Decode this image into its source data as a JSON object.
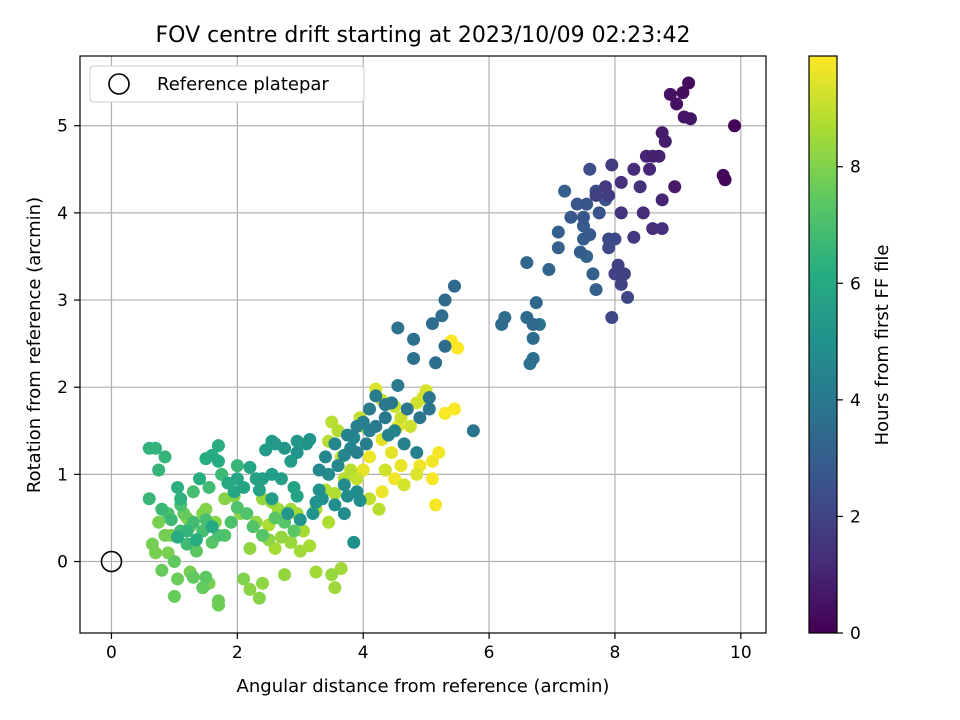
{
  "chart_data": {
    "type": "scatter",
    "title": "FOV centre drift starting at 2023/10/09 02:23:42",
    "xlabel": "Angular distance from reference (arcmin)",
    "ylabel": "Rotation from reference (arcmin)",
    "xlim": [
      -0.5,
      10.4
    ],
    "ylim": [
      -0.82,
      5.8
    ],
    "xticks": [
      0,
      2,
      4,
      6,
      8,
      10
    ],
    "yticks": [
      0,
      1,
      2,
      3,
      4,
      5
    ],
    "grid": true,
    "legend": {
      "position": "top-left",
      "entries": [
        {
          "label": "Reference platepar",
          "marker": "open-circle"
        }
      ]
    },
    "reference_point": {
      "x": 0,
      "y": 0
    },
    "colorbar": {
      "label": "Hours from first FF file",
      "min": 0,
      "max": 9.9,
      "ticks": [
        0,
        2,
        4,
        6,
        8
      ],
      "colormap": "viridis"
    },
    "points": [
      [
        9.9,
        5.0,
        0.05
      ],
      [
        9.72,
        4.43,
        0.15
      ],
      [
        9.75,
        4.38,
        0.2
      ],
      [
        9.17,
        5.49,
        0.3
      ],
      [
        9.08,
        5.38,
        0.35
      ],
      [
        8.88,
        5.36,
        0.45
      ],
      [
        8.98,
        5.25,
        0.5
      ],
      [
        9.1,
        5.1,
        0.55
      ],
      [
        9.2,
        5.08,
        0.6
      ],
      [
        8.95,
        4.3,
        0.7
      ],
      [
        8.75,
        4.92,
        0.75
      ],
      [
        8.8,
        4.82,
        0.8
      ],
      [
        8.6,
        4.65,
        0.9
      ],
      [
        8.7,
        4.65,
        0.95
      ],
      [
        8.5,
        4.65,
        1.0
      ],
      [
        8.75,
        4.15,
        1.05
      ],
      [
        8.55,
        4.5,
        1.1
      ],
      [
        8.45,
        4.0,
        1.2
      ],
      [
        8.3,
        4.5,
        1.25
      ],
      [
        8.6,
        3.82,
        1.3
      ],
      [
        8.75,
        3.82,
        1.35
      ],
      [
        8.1,
        4.35,
        1.4
      ],
      [
        8.4,
        4.3,
        1.45
      ],
      [
        8.1,
        4.0,
        1.5
      ],
      [
        8.3,
        3.72,
        1.6
      ],
      [
        7.85,
        4.3,
        1.7
      ],
      [
        7.95,
        4.55,
        1.75
      ],
      [
        7.9,
        4.2,
        1.8
      ],
      [
        7.7,
        4.2,
        1.85
      ],
      [
        8.15,
        3.3,
        1.9
      ],
      [
        8.05,
        3.4,
        1.95
      ],
      [
        8.0,
        3.3,
        2.0
      ],
      [
        8.1,
        3.18,
        2.05
      ],
      [
        8.2,
        3.03,
        2.1
      ],
      [
        7.95,
        2.8,
        2.15
      ],
      [
        7.9,
        3.6,
        2.2
      ],
      [
        8.0,
        3.7,
        2.25
      ],
      [
        7.9,
        3.7,
        2.3
      ],
      [
        7.6,
        4.5,
        2.4
      ],
      [
        7.7,
        4.25,
        2.45
      ],
      [
        7.85,
        4.15,
        2.5
      ],
      [
        7.75,
        4.0,
        2.55
      ],
      [
        7.55,
        4.1,
        2.6
      ],
      [
        7.5,
        3.95,
        2.65
      ],
      [
        7.4,
        4.1,
        2.7
      ],
      [
        7.3,
        3.95,
        2.75
      ],
      [
        7.5,
        3.85,
        2.8
      ],
      [
        7.6,
        3.75,
        2.85
      ],
      [
        7.5,
        3.7,
        2.9
      ],
      [
        7.45,
        3.55,
        2.95
      ],
      [
        7.65,
        3.3,
        3.0
      ],
      [
        7.7,
        3.12,
        3.05
      ],
      [
        7.2,
        4.25,
        3.05
      ],
      [
        7.1,
        3.78,
        3.1
      ],
      [
        7.1,
        3.6,
        3.15
      ],
      [
        7.55,
        3.5,
        3.2
      ],
      [
        6.95,
        3.35,
        3.25
      ],
      [
        6.6,
        3.43,
        3.3
      ],
      [
        6.75,
        2.97,
        3.35
      ],
      [
        6.7,
        2.72,
        3.4
      ],
      [
        6.6,
        2.8,
        3.45
      ],
      [
        6.25,
        2.8,
        3.5
      ],
      [
        6.2,
        2.72,
        3.55
      ],
      [
        6.7,
        2.56,
        3.6
      ],
      [
        6.7,
        2.33,
        3.65
      ],
      [
        6.65,
        2.27,
        3.7
      ],
      [
        6.8,
        2.72,
        3.75
      ],
      [
        5.45,
        3.16,
        3.4
      ],
      [
        5.3,
        3.0,
        3.45
      ],
      [
        5.25,
        2.82,
        3.5
      ],
      [
        5.1,
        2.73,
        3.55
      ],
      [
        5.3,
        2.47,
        3.6
      ],
      [
        5.15,
        2.28,
        3.65
      ],
      [
        4.8,
        2.55,
        3.7
      ],
      [
        4.8,
        2.33,
        3.75
      ],
      [
        4.55,
        2.68,
        3.8
      ],
      [
        5.75,
        1.5,
        3.85
      ],
      [
        5.05,
        1.88,
        3.9
      ],
      [
        4.55,
        2.02,
        3.95
      ],
      [
        4.35,
        1.8,
        4.0
      ],
      [
        4.1,
        1.75,
        4.1
      ],
      [
        4.2,
        1.9,
        4.15
      ],
      [
        4.0,
        1.6,
        4.2
      ],
      [
        4.1,
        1.5,
        4.3
      ],
      [
        3.9,
        1.55,
        4.35
      ],
      [
        4.4,
        1.45,
        4.4
      ],
      [
        4.5,
        1.5,
        4.45
      ],
      [
        3.8,
        1.3,
        4.5
      ],
      [
        3.7,
        1.22,
        4.55
      ],
      [
        3.85,
        1.42,
        4.6
      ],
      [
        3.6,
        1.1,
        4.65
      ],
      [
        3.45,
        1.0,
        4.7
      ],
      [
        3.7,
        0.88,
        4.75
      ],
      [
        3.75,
        0.75,
        4.8
      ],
      [
        3.9,
        0.8,
        4.85
      ],
      [
        3.95,
        0.7,
        4.9
      ],
      [
        3.85,
        0.22,
        4.95
      ],
      [
        3.3,
        0.82,
        5.0
      ],
      [
        3.25,
        0.68,
        5.05
      ],
      [
        2.95,
        1.25,
        5.1
      ],
      [
        3.1,
        1.35,
        5.15
      ],
      [
        3.15,
        1.4,
        5.2
      ],
      [
        2.95,
        1.38,
        5.25
      ],
      [
        2.75,
        1.3,
        5.3
      ],
      [
        2.6,
        1.35,
        5.35
      ],
      [
        2.55,
        1.38,
        5.4
      ],
      [
        2.45,
        1.28,
        5.45
      ],
      [
        2.85,
        1.15,
        5.5
      ],
      [
        2.7,
        0.95,
        5.55
      ],
      [
        2.55,
        1.0,
        5.6
      ],
      [
        2.4,
        0.95,
        5.65
      ],
      [
        2.35,
        0.82,
        5.7
      ],
      [
        2.9,
        0.85,
        5.75
      ],
      [
        2.95,
        0.75,
        5.8
      ],
      [
        2.2,
        1.08,
        5.85
      ],
      [
        2.0,
        0.95,
        5.9
      ],
      [
        1.95,
        0.8,
        5.95
      ],
      [
        1.85,
        0.9,
        6.0
      ],
      [
        1.7,
        1.15,
        6.05
      ],
      [
        1.6,
        1.22,
        6.1
      ],
      [
        1.5,
        1.18,
        6.15
      ],
      [
        1.4,
        0.95,
        6.2
      ],
      [
        1.7,
        1.33,
        6.25
      ],
      [
        1.05,
        0.85,
        6.3
      ],
      [
        1.1,
        0.72,
        6.35
      ],
      [
        0.6,
        1.3,
        6.4
      ],
      [
        0.7,
        1.3,
        6.45
      ],
      [
        0.85,
        1.2,
        6.5
      ],
      [
        0.75,
        1.05,
        6.55
      ],
      [
        0.6,
        0.72,
        6.6
      ],
      [
        0.8,
        0.6,
        6.65
      ],
      [
        0.95,
        0.48,
        6.7
      ],
      [
        1.1,
        0.35,
        6.75
      ],
      [
        1.2,
        0.2,
        6.8
      ],
      [
        1.3,
        0.45,
        6.85
      ],
      [
        1.45,
        0.35,
        6.9
      ],
      [
        1.5,
        0.48,
        6.95
      ],
      [
        1.7,
        0.3,
        7.0
      ],
      [
        1.9,
        0.45,
        7.05
      ],
      [
        2.0,
        0.62,
        7.1
      ],
      [
        2.15,
        0.55,
        7.15
      ],
      [
        2.25,
        0.4,
        7.2
      ],
      [
        2.4,
        0.3,
        7.25
      ],
      [
        2.6,
        0.5,
        7.3
      ],
      [
        2.75,
        0.45,
        7.35
      ],
      [
        2.9,
        0.35,
        7.4
      ],
      [
        1.5,
        -0.18,
        7.45
      ],
      [
        1.3,
        -0.18,
        7.5
      ],
      [
        1.45,
        -0.3,
        7.55
      ],
      [
        1.0,
        -0.4,
        7.6
      ],
      [
        1.05,
        -0.2,
        7.65
      ],
      [
        1.7,
        -0.45,
        7.7
      ],
      [
        1.7,
        -0.5,
        7.75
      ],
      [
        0.65,
        0.2,
        7.8
      ],
      [
        0.7,
        0.1,
        7.85
      ],
      [
        0.9,
        0.1,
        7.9
      ],
      [
        0.95,
        0.3,
        7.95
      ],
      [
        1.2,
        0.5,
        8.0
      ],
      [
        1.5,
        0.6,
        8.05
      ],
      [
        1.8,
        0.72,
        8.1
      ],
      [
        1.95,
        0.75,
        8.15
      ],
      [
        2.05,
        0.55,
        8.2
      ],
      [
        2.2,
        0.15,
        8.25
      ],
      [
        2.3,
        0.45,
        8.3
      ],
      [
        2.4,
        0.72,
        8.35
      ],
      [
        2.55,
        0.68,
        8.4
      ],
      [
        2.65,
        0.6,
        8.45
      ],
      [
        2.85,
        0.6,
        8.5
      ],
      [
        2.95,
        0.55,
        8.55
      ],
      [
        3.05,
        0.35,
        8.6
      ],
      [
        3.25,
        0.6,
        8.65
      ],
      [
        3.4,
        0.82,
        8.7
      ],
      [
        3.55,
        0.78,
        8.75
      ],
      [
        3.7,
        0.95,
        8.8
      ],
      [
        3.6,
        1.5,
        8.8
      ],
      [
        3.5,
        1.6,
        8.85
      ],
      [
        3.45,
        1.38,
        8.85
      ],
      [
        3.65,
        1.2,
        8.9
      ],
      [
        3.8,
        1.05,
        8.9
      ],
      [
        4.0,
        1.55,
        8.95
      ],
      [
        3.95,
        1.65,
        9.0
      ],
      [
        4.3,
        1.85,
        9.05
      ],
      [
        4.5,
        1.78,
        9.1
      ],
      [
        4.6,
        1.65,
        9.15
      ],
      [
        4.75,
        1.55,
        9.2
      ],
      [
        4.85,
        1.82,
        9.25
      ],
      [
        4.95,
        1.88,
        9.3
      ],
      [
        5.0,
        1.96,
        9.35
      ],
      [
        4.2,
        1.98,
        9.4
      ],
      [
        4.55,
        1.55,
        9.45
      ],
      [
        4.3,
        1.4,
        9.5
      ],
      [
        4.45,
        1.25,
        9.55
      ],
      [
        4.6,
        1.1,
        9.6
      ],
      [
        4.0,
        1.05,
        9.6
      ],
      [
        4.1,
        1.2,
        9.65
      ],
      [
        4.3,
        0.8,
        9.65
      ],
      [
        4.5,
        0.95,
        9.7
      ],
      [
        4.9,
        1.1,
        9.7
      ],
      [
        5.1,
        1.15,
        9.75
      ],
      [
        5.2,
        1.25,
        9.75
      ],
      [
        5.1,
        0.95,
        9.8
      ],
      [
        5.15,
        0.65,
        9.8
      ],
      [
        5.3,
        1.7,
        9.85
      ],
      [
        5.45,
        1.75,
        9.85
      ],
      [
        5.4,
        2.53,
        9.9
      ],
      [
        5.5,
        2.45,
        9.9
      ],
      [
        3.5,
        -0.15,
        8.4
      ],
      [
        3.55,
        -0.3,
        8.45
      ],
      [
        3.65,
        -0.08,
        8.5
      ],
      [
        3.25,
        -0.12,
        8.55
      ],
      [
        2.75,
        -0.15,
        8.3
      ],
      [
        2.4,
        -0.25,
        8.2
      ],
      [
        2.2,
        -0.32,
        8.15
      ],
      [
        2.35,
        -0.42,
        8.1
      ],
      [
        2.1,
        -0.2,
        8.0
      ],
      [
        1.55,
        -0.25,
        7.9
      ],
      [
        1.25,
        -0.12,
        7.85
      ],
      [
        0.8,
        -0.1,
        7.6
      ],
      [
        1.0,
        0.0,
        7.5
      ],
      [
        1.35,
        0.12,
        7.4
      ],
      [
        1.6,
        0.22,
        7.3
      ],
      [
        1.8,
        0.3,
        7.2
      ],
      [
        0.9,
        0.55,
        7.1
      ],
      [
        1.1,
        0.65,
        7.0
      ],
      [
        1.3,
        0.8,
        6.9
      ],
      [
        1.55,
        0.85,
        6.8
      ],
      [
        1.75,
        1.0,
        6.7
      ],
      [
        2.0,
        1.1,
        6.6
      ],
      [
        1.2,
        0.35,
        6.5
      ],
      [
        1.35,
        0.25,
        6.2
      ],
      [
        1.05,
        0.28,
        6.1
      ],
      [
        1.6,
        0.4,
        6.0
      ],
      [
        2.1,
        0.85,
        5.8
      ],
      [
        2.3,
        0.95,
        5.7
      ],
      [
        2.55,
        0.72,
        5.5
      ],
      [
        2.8,
        0.55,
        5.3
      ],
      [
        3.0,
        0.48,
        5.2
      ],
      [
        3.2,
        0.55,
        5.1
      ],
      [
        3.35,
        0.72,
        5.0
      ],
      [
        3.55,
        0.65,
        4.9
      ],
      [
        3.7,
        0.55,
        4.8
      ],
      [
        3.4,
        1.2,
        4.6
      ],
      [
        3.3,
        1.05,
        4.6
      ],
      [
        3.55,
        1.35,
        4.5
      ],
      [
        3.75,
        1.45,
        4.4
      ],
      [
        3.9,
        1.25,
        4.3
      ],
      [
        4.05,
        1.35,
        4.2
      ],
      [
        4.2,
        1.55,
        4.1
      ],
      [
        4.35,
        1.65,
        4.05
      ],
      [
        4.45,
        1.82,
        4.0
      ],
      [
        4.7,
        1.75,
        3.95
      ],
      [
        4.9,
        1.65,
        3.9
      ],
      [
        5.05,
        1.75,
        3.85
      ],
      [
        4.65,
        1.35,
        4.3
      ],
      [
        4.85,
        1.25,
        4.25
      ],
      [
        1.15,
        0.55,
        7.6
      ],
      [
        1.25,
        0.4,
        7.7
      ],
      [
        0.85,
        0.3,
        7.8
      ],
      [
        0.75,
        0.45,
        7.9
      ],
      [
        1.45,
        0.55,
        8.0
      ],
      [
        1.65,
        0.45,
        8.1
      ],
      [
        2.5,
        0.25,
        8.2
      ],
      [
        2.7,
        0.28,
        8.3
      ],
      [
        2.85,
        0.22,
        8.4
      ],
      [
        3.0,
        0.12,
        8.5
      ],
      [
        2.6,
        0.15,
        8.6
      ],
      [
        2.5,
        0.42,
        8.7
      ],
      [
        3.15,
        0.18,
        8.6
      ],
      [
        3.45,
        0.45,
        8.7
      ],
      [
        4.25,
        0.6,
        8.9
      ],
      [
        4.1,
        0.72,
        9.0
      ],
      [
        3.9,
        0.95,
        9.1
      ],
      [
        4.35,
        1.05,
        9.2
      ],
      [
        4.65,
        0.88,
        9.3
      ],
      [
        4.85,
        1.0,
        9.4
      ]
    ]
  }
}
